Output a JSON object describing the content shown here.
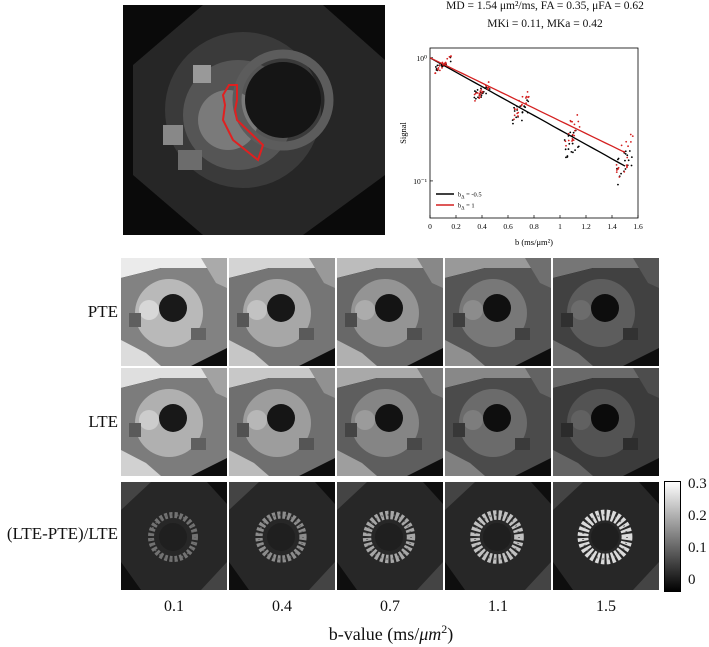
{
  "figure": {
    "stats_line1": "MD = 1.54 μm²/ms, FA = 0.35, μFA = 0.62",
    "stats_line2": "MKi = 0.11, MKa = 0.42",
    "row_labels": [
      "PTE",
      "LTE",
      "(LTE-PTE)/LTE"
    ],
    "b_values": [
      "0.1",
      "0.4",
      "0.7",
      "1.1",
      "1.5"
    ],
    "xaxis_label_main": "b-value (ms/",
    "xaxis_label_unit": "μm",
    "xaxis_label_sup": "2",
    "xaxis_label_end": ")",
    "colorbar_ticks": [
      "0.3",
      "0.2",
      "0.1",
      "0"
    ]
  },
  "chart_data": {
    "type": "scatter",
    "xlabel": "b (ms/μm²)",
    "ylabel": "Signal",
    "xlim": [
      0,
      1.6
    ],
    "xticks": [
      "0",
      "0.2",
      "0.4",
      "0.6",
      "0.8",
      "1",
      "1.2",
      "1.4",
      "1.6"
    ],
    "ylim": [
      0.05,
      1.2
    ],
    "yscale": "log",
    "yticks": [
      "10⁰",
      "10⁻¹"
    ],
    "legend_position": "bottom-left",
    "series": [
      {
        "name": "b",
        "name_sub": "Δ",
        "name_value": " = -0.5",
        "color": "#000000",
        "x": [
          0.1,
          0.4,
          0.7,
          1.1,
          1.5
        ],
        "y": [
          0.88,
          0.53,
          0.36,
          0.21,
          0.13
        ],
        "fit_y0": 1.0,
        "fit_decay": 1.35
      },
      {
        "name": "b",
        "name_sub": "Δ",
        "name_value": " = 1",
        "color": "#d42020",
        "x": [
          0.1,
          0.4,
          0.7,
          1.1,
          1.5
        ],
        "y": [
          0.88,
          0.55,
          0.4,
          0.26,
          0.16
        ],
        "fit_y0": 1.0,
        "fit_decay": 1.18
      }
    ]
  },
  "colors": {
    "roi_outline": "#e02020",
    "background": "#1c1c1c"
  }
}
